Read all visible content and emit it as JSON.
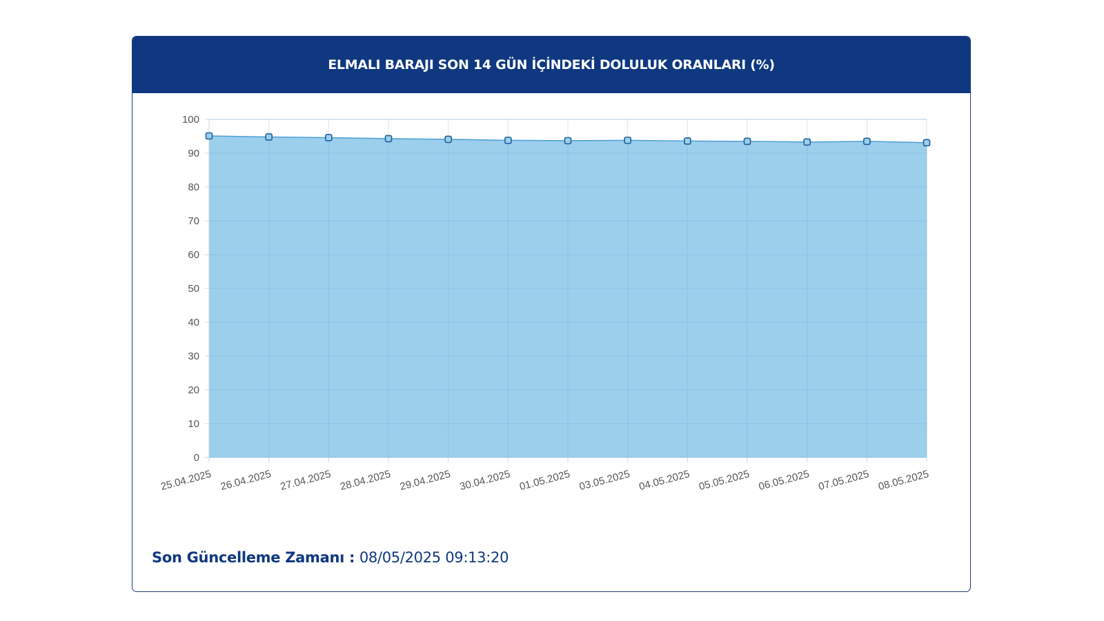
{
  "card": {
    "title": "ELMALI BARAJI SON 14 GÜN İÇİNDEKİ DOLULUK ORANLARI (%)"
  },
  "footer": {
    "label": "Son Güncelleme Zamanı :",
    "value": "08/05/2025 09:13:20"
  },
  "colors": {
    "header": "#0f3880",
    "area_fill": "#9ccfec",
    "line": "#4a9fd4",
    "marker_stroke": "#1f5e99",
    "grid": "#dde6ee"
  },
  "chart_data": {
    "type": "area",
    "title": "ELMALI BARAJI SON 14 GÜN İÇİNDEKİ DOLULUK ORANLARI (%)",
    "xlabel": "",
    "ylabel": "",
    "ylim": [
      0,
      100
    ],
    "yticks": [
      0,
      10,
      20,
      30,
      40,
      50,
      60,
      70,
      80,
      90,
      100
    ],
    "grid": true,
    "legend": "none",
    "categories": [
      "25.04.2025",
      "26.04.2025",
      "27.04.2025",
      "28.04.2025",
      "29.04.2025",
      "30.04.2025",
      "01.05.2025",
      "03.05.2025",
      "04.05.2025",
      "05.05.2025",
      "06.05.2025",
      "07.05.2025",
      "08.05.2025"
    ],
    "values": [
      95.1,
      94.8,
      94.6,
      94.3,
      94.1,
      93.8,
      93.7,
      93.8,
      93.6,
      93.5,
      93.3,
      93.5,
      93.1
    ]
  }
}
